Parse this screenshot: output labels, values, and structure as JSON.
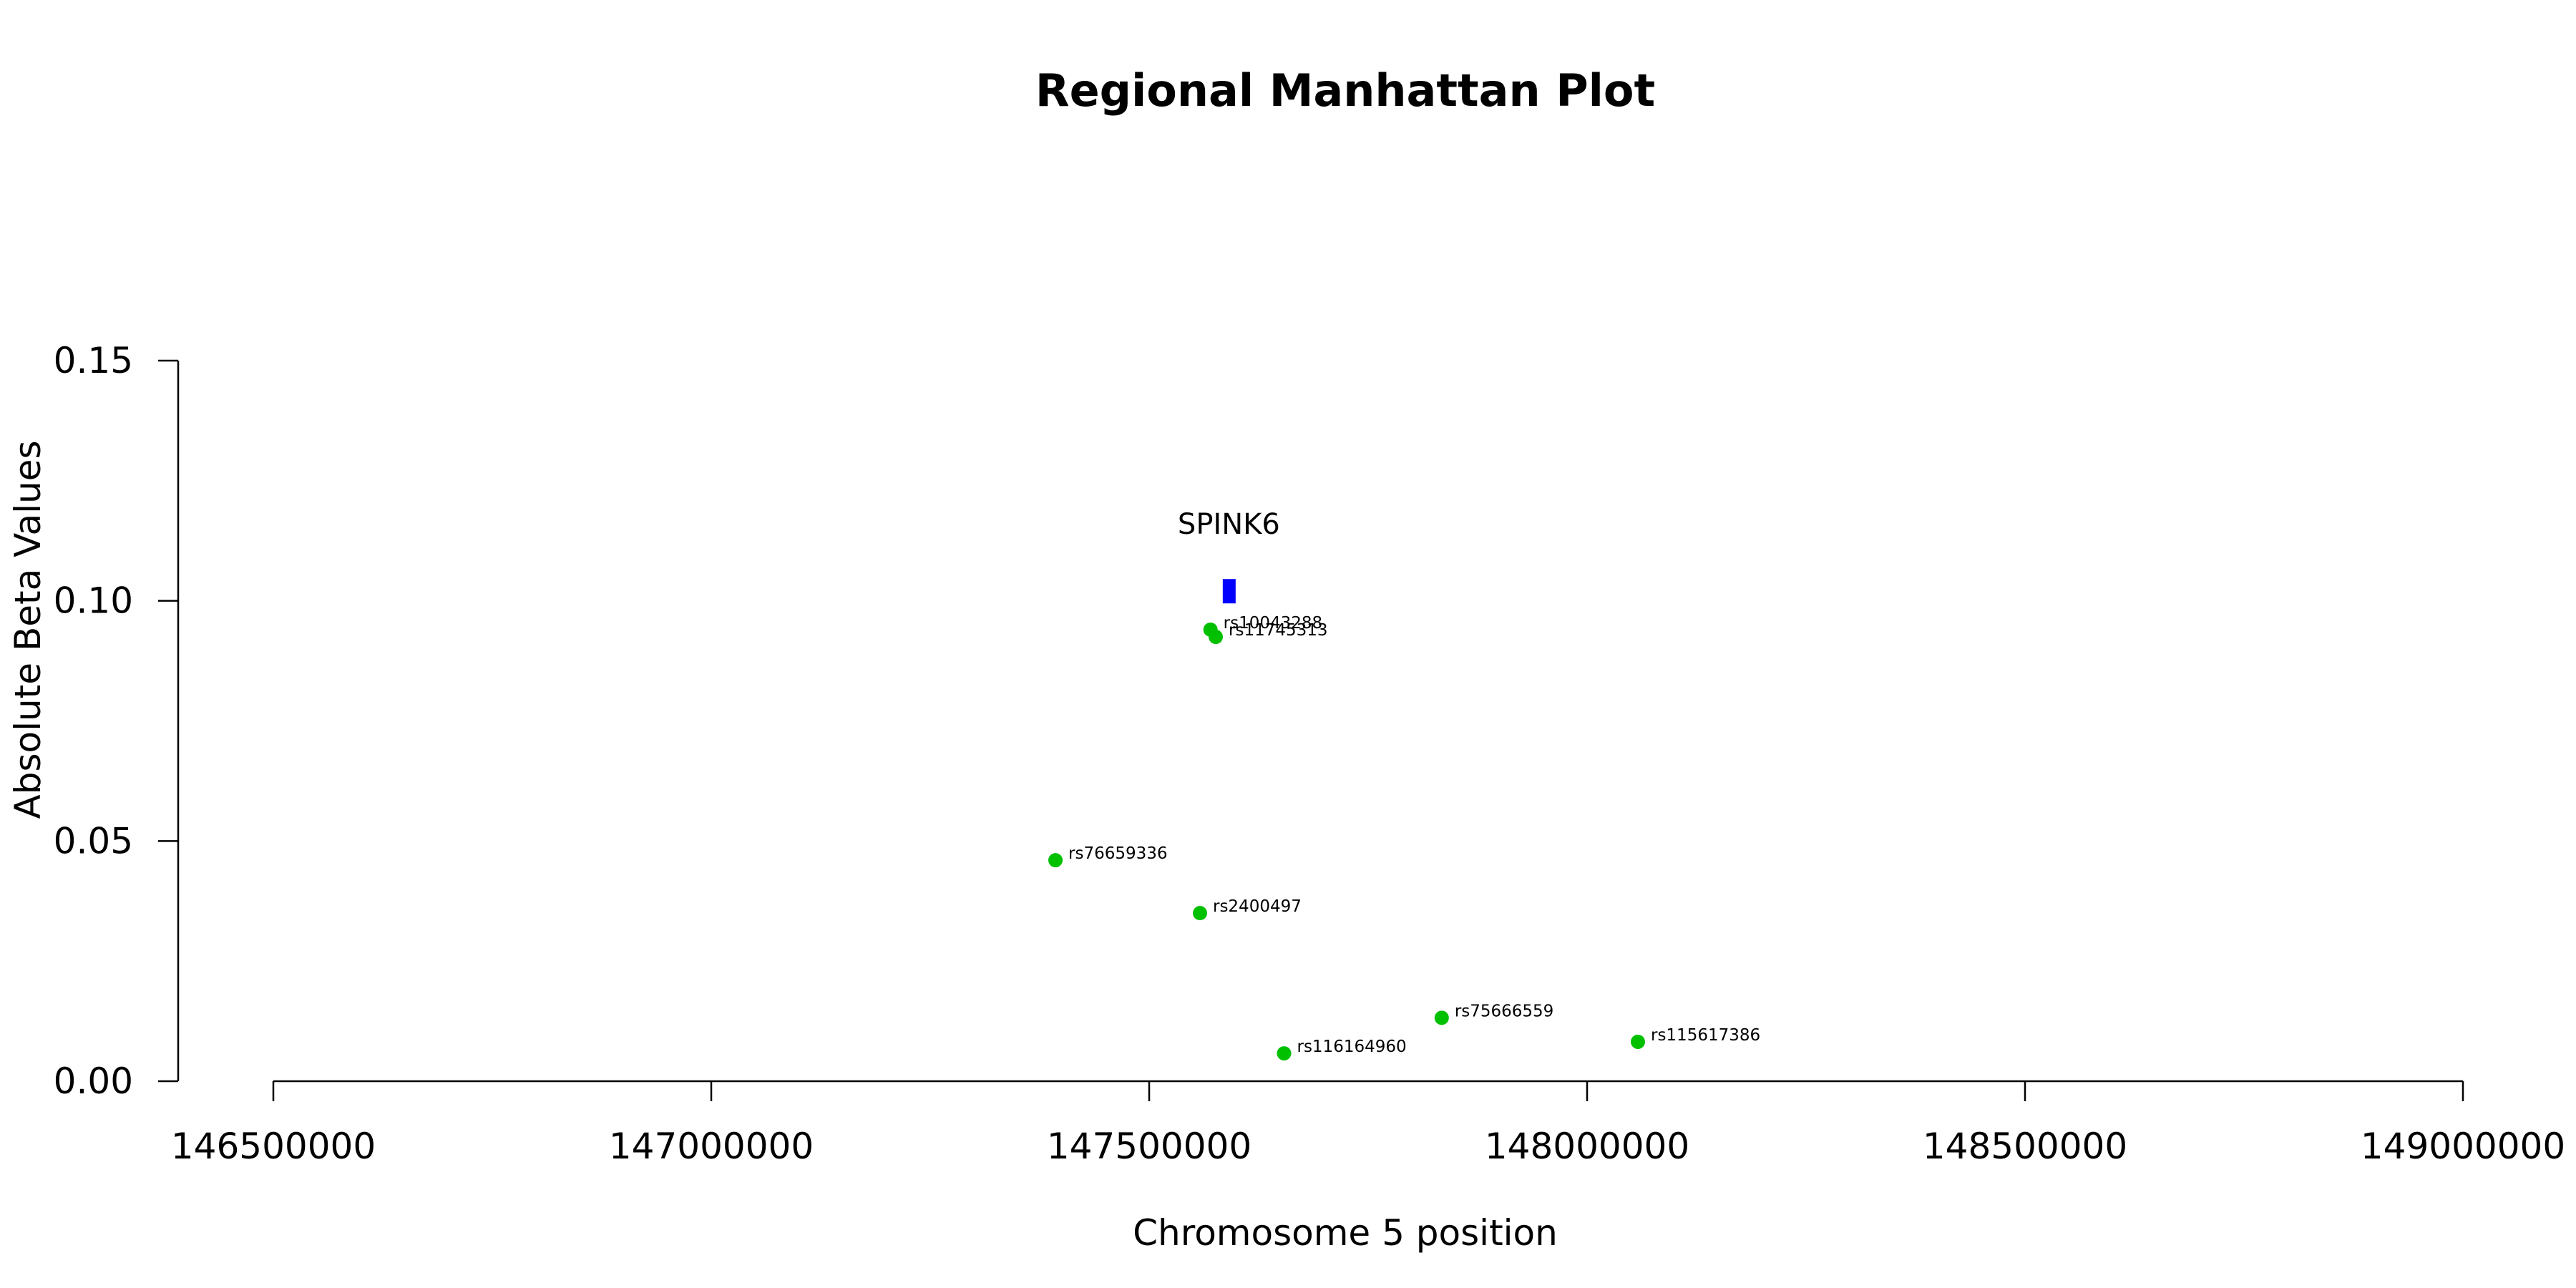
{
  "chart_data": {
    "type": "scatter",
    "title": "Regional Manhattan Plot",
    "xlabel": "Chromosome 5 position",
    "ylabel": "Absolute Beta Values",
    "xlim": [
      146500000,
      149000000
    ],
    "ylim": [
      0,
      0.15
    ],
    "x_ticks": [
      "146500000",
      "147000000",
      "147500000",
      "148000000",
      "148500000",
      "149000000"
    ],
    "y_ticks": [
      "0.00",
      "0.05",
      "0.10",
      "0.15"
    ],
    "grid": false,
    "point_color": "#00c000",
    "gene_color": "#0000ff",
    "points": [
      {
        "label": "rs10043288",
        "x": 147570000,
        "y": 0.094
      },
      {
        "label": "rs11745313",
        "x": 147576000,
        "y": 0.0925
      },
      {
        "label": "rs76659336",
        "x": 147393000,
        "y": 0.046
      },
      {
        "label": "rs2400497",
        "x": 147558000,
        "y": 0.035
      },
      {
        "label": "rs75666559",
        "x": 147834000,
        "y": 0.0132
      },
      {
        "label": "rs116164960",
        "x": 147654000,
        "y": 0.0058
      },
      {
        "label": "rs115617386",
        "x": 148058000,
        "y": 0.0082
      }
    ],
    "genes": [
      {
        "name": "SPINK6",
        "start": 147584000,
        "end": 147598000,
        "y": 0.102
      }
    ]
  }
}
